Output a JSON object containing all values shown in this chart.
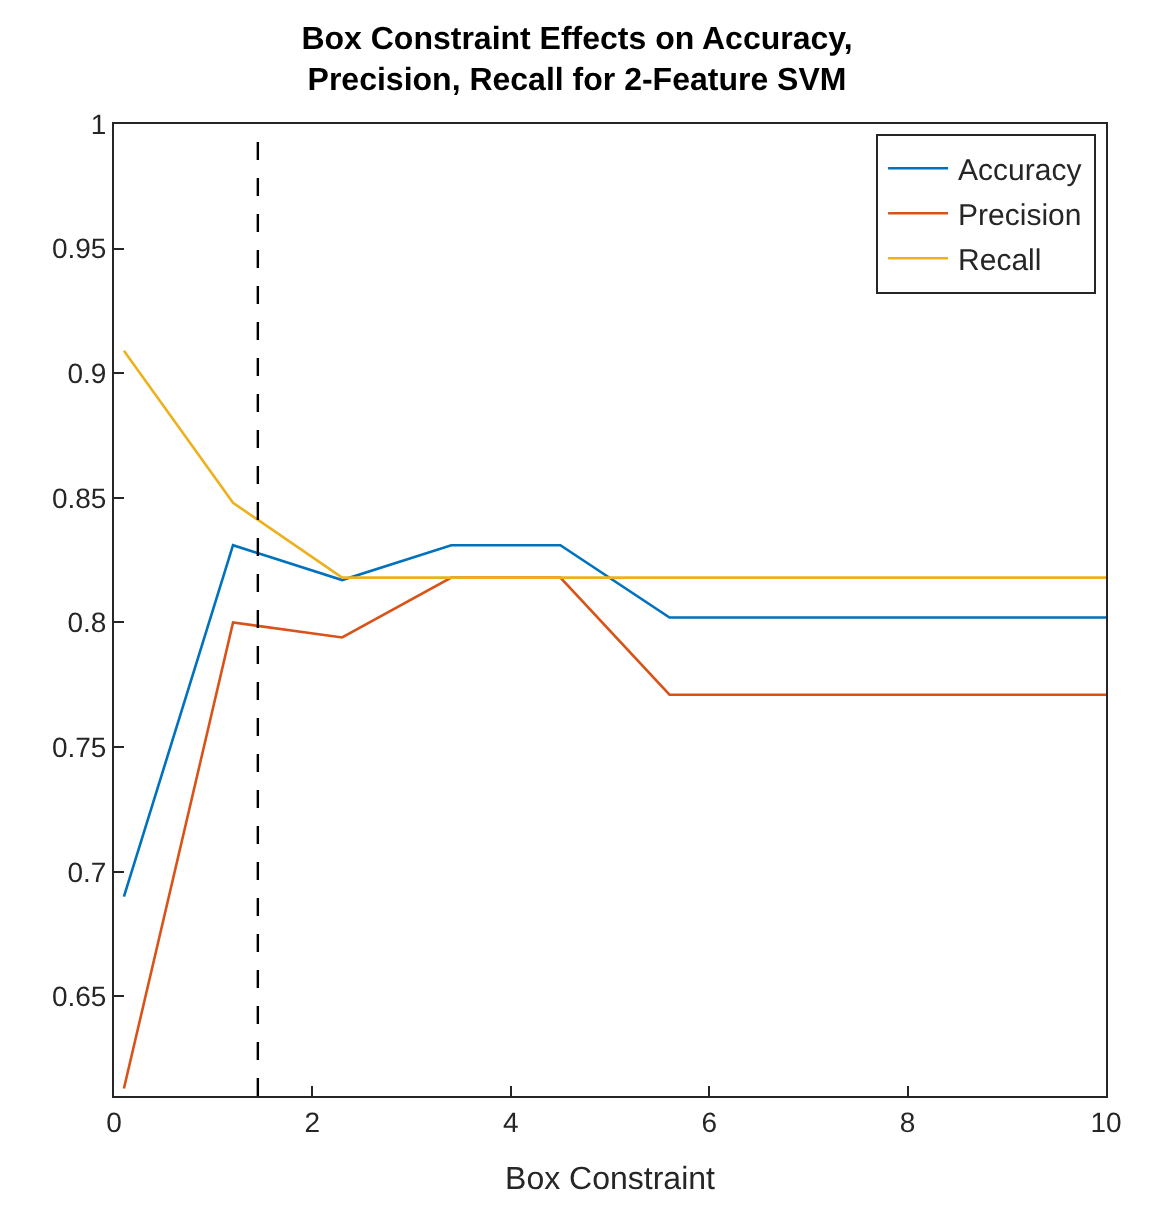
{
  "chart_data": {
    "type": "line",
    "title": "Box Constraint Effects on Accuracy,\nPrecision, Recall for 2-Feature SVM",
    "xlabel": "Box Constraint",
    "x": [
      0.1,
      1.2,
      2.3,
      3.4,
      4.5,
      5.6,
      6.7,
      7.8,
      8.9,
      10
    ],
    "series": [
      {
        "name": "Accuracy",
        "color": "#0072bd",
        "values": [
          0.69,
          0.831,
          0.817,
          0.831,
          0.831,
          0.802,
          0.802,
          0.802,
          0.802,
          0.802
        ]
      },
      {
        "name": "Precision",
        "color": "#d95319",
        "values": [
          0.613,
          0.8,
          0.794,
          0.818,
          0.818,
          0.771,
          0.771,
          0.771,
          0.771,
          0.771
        ]
      },
      {
        "name": "Recall",
        "color": "#edb120",
        "values": [
          0.909,
          0.848,
          0.818,
          0.818,
          0.818,
          0.818,
          0.818,
          0.818,
          0.818,
          0.818
        ]
      }
    ],
    "xlim": [
      0,
      10
    ],
    "xticks": [
      0,
      2,
      4,
      6,
      8,
      10
    ],
    "ylim": [
      0.61,
      1
    ],
    "yticks": [
      0.65,
      0.7,
      0.75,
      0.8,
      0.85,
      0.9,
      0.95,
      1
    ],
    "ref_lines": [
      {
        "axis": "x",
        "value": 1.45,
        "color": "#000000",
        "line_style": "dashed"
      }
    ],
    "legend": "top right",
    "marker": "none",
    "line_style": "solid"
  }
}
